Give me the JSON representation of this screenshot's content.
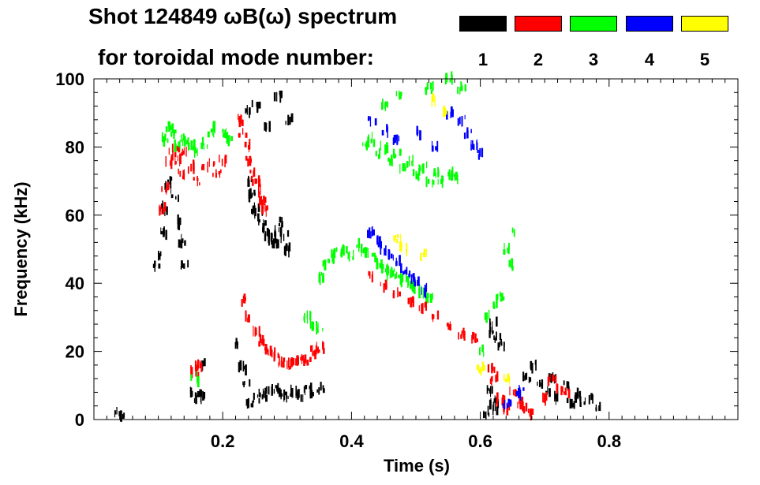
{
  "title_line1": "Shot 124849 ωB(ω) spectrum",
  "title_line2": "for toroidal mode number:",
  "legend": [
    {
      "label": "1",
      "color": "#000000"
    },
    {
      "label": "2",
      "color": "#ff0000"
    },
    {
      "label": "3",
      "color": "#00ff00"
    },
    {
      "label": "4",
      "color": "#0000ff"
    },
    {
      "label": "5",
      "color": "#ffff00"
    }
  ],
  "chart_data": {
    "type": "scatter",
    "title": "Shot 124849 ωB(ω) spectrum for toroidal mode number",
    "xlabel": "Time (s)",
    "ylabel": "Frequency (kHz)",
    "xlim": [
      0.0,
      1.0
    ],
    "ylim": [
      0,
      100
    ],
    "xticks": [
      0.2,
      0.4,
      0.6,
      0.8
    ],
    "xtick_labels": [
      "0.2",
      "0.4",
      "0.6",
      "0.8"
    ],
    "yticks": [
      0,
      20,
      40,
      60,
      80,
      100
    ],
    "ytick_labels": [
      "0",
      "20",
      "40",
      "60",
      "80",
      "100"
    ],
    "series": [
      {
        "name": "1",
        "color": "#000000",
        "points": [
          [
            0.035,
            2
          ],
          [
            0.045,
            1
          ],
          [
            0.095,
            45
          ],
          [
            0.1,
            48
          ],
          [
            0.105,
            55
          ],
          [
            0.11,
            62
          ],
          [
            0.115,
            68
          ],
          [
            0.12,
            70
          ],
          [
            0.125,
            65
          ],
          [
            0.13,
            58
          ],
          [
            0.135,
            52
          ],
          [
            0.14,
            45
          ],
          [
            0.155,
            8
          ],
          [
            0.16,
            6
          ],
          [
            0.165,
            7
          ],
          [
            0.17,
            16
          ],
          [
            0.225,
            22
          ],
          [
            0.23,
            15
          ],
          [
            0.235,
            10
          ],
          [
            0.24,
            70
          ],
          [
            0.245,
            66
          ],
          [
            0.25,
            62
          ],
          [
            0.255,
            60
          ],
          [
            0.26,
            58
          ],
          [
            0.265,
            56
          ],
          [
            0.27,
            54
          ],
          [
            0.275,
            53
          ],
          [
            0.28,
            52
          ],
          [
            0.285,
            55
          ],
          [
            0.29,
            58
          ],
          [
            0.295,
            54
          ],
          [
            0.3,
            50
          ],
          [
            0.24,
            5
          ],
          [
            0.25,
            6
          ],
          [
            0.26,
            7
          ],
          [
            0.27,
            8
          ],
          [
            0.28,
            9
          ],
          [
            0.29,
            8
          ],
          [
            0.3,
            7
          ],
          [
            0.31,
            8
          ],
          [
            0.32,
            7
          ],
          [
            0.33,
            9
          ],
          [
            0.34,
            8
          ],
          [
            0.35,
            9
          ],
          [
            0.24,
            90
          ],
          [
            0.25,
            92
          ],
          [
            0.27,
            86
          ],
          [
            0.285,
            95
          ],
          [
            0.3,
            88
          ],
          [
            0.61,
            2
          ],
          [
            0.615,
            8
          ],
          [
            0.62,
            5
          ],
          [
            0.625,
            3
          ],
          [
            0.615,
            26
          ],
          [
            0.62,
            28
          ],
          [
            0.625,
            24
          ],
          [
            0.63,
            22
          ],
          [
            0.67,
            12
          ],
          [
            0.68,
            16
          ],
          [
            0.69,
            10
          ],
          [
            0.7,
            8
          ],
          [
            0.71,
            12
          ],
          [
            0.72,
            6
          ],
          [
            0.73,
            10
          ],
          [
            0.74,
            5
          ],
          [
            0.75,
            7
          ],
          [
            0.76,
            5
          ],
          [
            0.77,
            6
          ],
          [
            0.78,
            4
          ]
        ]
      },
      {
        "name": "2",
        "color": "#ff0000",
        "points": [
          [
            0.105,
            62
          ],
          [
            0.11,
            68
          ],
          [
            0.115,
            75
          ],
          [
            0.12,
            78
          ],
          [
            0.125,
            80
          ],
          [
            0.13,
            76
          ],
          [
            0.135,
            72
          ],
          [
            0.14,
            78
          ],
          [
            0.15,
            74
          ],
          [
            0.16,
            70
          ],
          [
            0.17,
            74
          ],
          [
            0.18,
            75
          ],
          [
            0.19,
            72
          ],
          [
            0.2,
            76
          ],
          [
            0.155,
            14
          ],
          [
            0.16,
            16
          ],
          [
            0.225,
            88
          ],
          [
            0.23,
            84
          ],
          [
            0.235,
            80
          ],
          [
            0.24,
            76
          ],
          [
            0.245,
            73
          ],
          [
            0.25,
            70
          ],
          [
            0.255,
            67
          ],
          [
            0.26,
            64
          ],
          [
            0.265,
            62
          ],
          [
            0.23,
            35
          ],
          [
            0.24,
            30
          ],
          [
            0.25,
            26
          ],
          [
            0.26,
            23
          ],
          [
            0.27,
            20
          ],
          [
            0.28,
            19
          ],
          [
            0.29,
            17
          ],
          [
            0.3,
            16
          ],
          [
            0.31,
            17
          ],
          [
            0.32,
            18
          ],
          [
            0.33,
            17
          ],
          [
            0.34,
            20
          ],
          [
            0.35,
            21
          ],
          [
            0.43,
            42
          ],
          [
            0.45,
            39
          ],
          [
            0.47,
            37
          ],
          [
            0.49,
            35
          ],
          [
            0.51,
            33
          ],
          [
            0.53,
            30
          ],
          [
            0.55,
            27
          ],
          [
            0.57,
            25
          ],
          [
            0.59,
            24
          ],
          [
            0.615,
            15
          ],
          [
            0.62,
            12
          ],
          [
            0.63,
            6
          ],
          [
            0.64,
            3
          ],
          [
            0.65,
            8
          ],
          [
            0.66,
            5
          ],
          [
            0.67,
            3
          ],
          [
            0.68,
            2
          ],
          [
            0.7,
            6
          ],
          [
            0.71,
            12
          ],
          [
            0.72,
            10
          ],
          [
            0.73,
            8
          ]
        ]
      },
      {
        "name": "3",
        "color": "#00ff00",
        "points": [
          [
            0.11,
            82
          ],
          [
            0.115,
            86
          ],
          [
            0.12,
            84
          ],
          [
            0.13,
            80
          ],
          [
            0.14,
            82
          ],
          [
            0.15,
            80
          ],
          [
            0.16,
            79
          ],
          [
            0.17,
            81
          ],
          [
            0.18,
            84
          ],
          [
            0.19,
            86
          ],
          [
            0.2,
            84
          ],
          [
            0.21,
            82
          ],
          [
            0.155,
            12
          ],
          [
            0.35,
            42
          ],
          [
            0.36,
            46
          ],
          [
            0.37,
            48
          ],
          [
            0.38,
            49
          ],
          [
            0.39,
            50
          ],
          [
            0.4,
            48
          ],
          [
            0.41,
            51
          ],
          [
            0.42,
            49
          ],
          [
            0.43,
            48
          ],
          [
            0.44,
            46
          ],
          [
            0.45,
            44
          ],
          [
            0.46,
            43
          ],
          [
            0.47,
            42
          ],
          [
            0.48,
            41
          ],
          [
            0.49,
            40
          ],
          [
            0.5,
            39
          ],
          [
            0.51,
            37
          ],
          [
            0.52,
            36
          ],
          [
            0.33,
            30
          ],
          [
            0.34,
            28
          ],
          [
            0.35,
            26
          ],
          [
            0.42,
            80
          ],
          [
            0.43,
            82
          ],
          [
            0.44,
            78
          ],
          [
            0.45,
            80
          ],
          [
            0.46,
            76
          ],
          [
            0.47,
            78
          ],
          [
            0.48,
            74
          ],
          [
            0.49,
            76
          ],
          [
            0.5,
            72
          ],
          [
            0.51,
            74
          ],
          [
            0.52,
            70
          ],
          [
            0.53,
            72
          ],
          [
            0.54,
            70
          ],
          [
            0.55,
            72
          ],
          [
            0.56,
            71
          ],
          [
            0.45,
            92
          ],
          [
            0.47,
            95
          ],
          [
            0.52,
            97
          ],
          [
            0.55,
            100
          ],
          [
            0.57,
            97
          ],
          [
            0.6,
            20
          ],
          [
            0.61,
            30
          ],
          [
            0.62,
            34
          ],
          [
            0.63,
            36
          ],
          [
            0.64,
            50
          ],
          [
            0.645,
            45
          ],
          [
            0.65,
            55
          ]
        ]
      },
      {
        "name": "4",
        "color": "#0000ff",
        "points": [
          [
            0.43,
            55
          ],
          [
            0.44,
            52
          ],
          [
            0.45,
            50
          ],
          [
            0.46,
            48
          ],
          [
            0.47,
            46
          ],
          [
            0.48,
            44
          ],
          [
            0.49,
            42
          ],
          [
            0.5,
            40
          ],
          [
            0.51,
            38
          ],
          [
            0.43,
            88
          ],
          [
            0.45,
            85
          ],
          [
            0.47,
            82
          ],
          [
            0.5,
            84
          ],
          [
            0.53,
            80
          ],
          [
            0.55,
            90
          ],
          [
            0.57,
            88
          ],
          [
            0.58,
            84
          ],
          [
            0.59,
            80
          ],
          [
            0.6,
            78
          ],
          [
            0.64,
            5
          ],
          [
            0.66,
            8
          ]
        ]
      },
      {
        "name": "5",
        "color": "#ffff00",
        "points": [
          [
            0.47,
            53
          ],
          [
            0.48,
            50
          ],
          [
            0.51,
            48
          ],
          [
            0.53,
            94
          ],
          [
            0.545,
            91
          ],
          [
            0.6,
            15
          ],
          [
            0.64,
            12
          ]
        ]
      }
    ]
  }
}
